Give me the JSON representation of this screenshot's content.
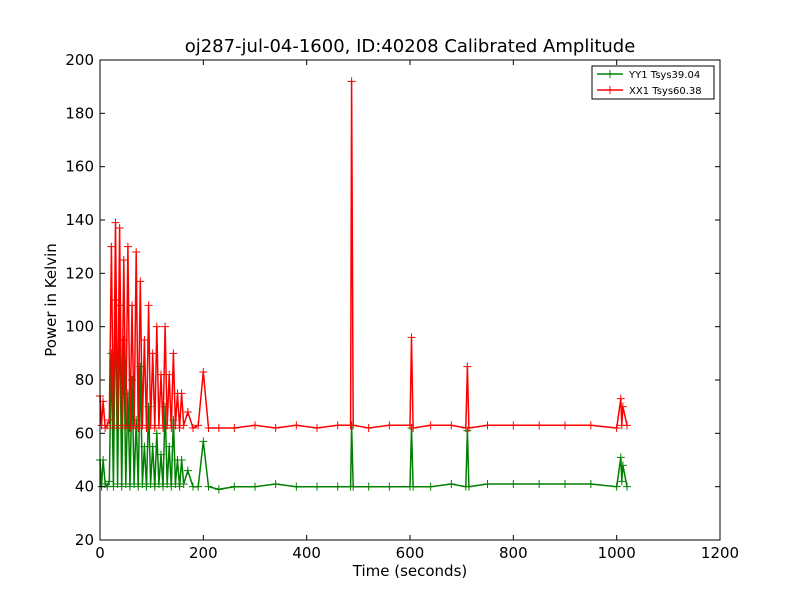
{
  "chart_data": {
    "type": "line",
    "title": "oj287-jul-04-1600, ID:40208 Calibrated Amplitude",
    "xlabel": "Time (seconds)",
    "ylabel": "Power in Kelvin",
    "xlim": [
      0,
      1200
    ],
    "ylim": [
      20,
      200
    ],
    "xticks": [
      0,
      200,
      400,
      600,
      800,
      1000,
      1200
    ],
    "yticks": [
      20,
      40,
      60,
      80,
      100,
      120,
      140,
      160,
      180,
      200
    ],
    "grid": false,
    "legend_position": "top-right",
    "series": [
      {
        "name": "YY1 Tsys39.04",
        "color": "#008000",
        "marker": "+",
        "x": [
          0,
          3,
          6,
          10,
          14,
          18,
          22,
          26,
          30,
          34,
          38,
          42,
          46,
          50,
          54,
          58,
          62,
          66,
          70,
          74,
          78,
          82,
          86,
          90,
          94,
          98,
          102,
          106,
          110,
          114,
          118,
          122,
          126,
          130,
          134,
          138,
          142,
          146,
          150,
          154,
          158,
          162,
          170,
          180,
          190,
          200,
          210,
          230,
          260,
          300,
          340,
          380,
          420,
          460,
          485,
          487,
          490,
          520,
          560,
          600,
          603,
          606,
          640,
          680,
          708,
          711,
          714,
          750,
          800,
          850,
          900,
          950,
          1000,
          1008,
          1010,
          1012,
          1020
        ],
        "values": [
          50,
          40,
          50,
          41,
          40,
          42,
          90,
          40,
          110,
          41,
          108,
          40,
          95,
          41,
          75,
          40,
          80,
          41,
          65,
          40,
          85,
          41,
          55,
          40,
          70,
          41,
          55,
          40,
          60,
          41,
          52,
          40,
          70,
          41,
          55,
          40,
          65,
          41,
          50,
          40,
          50,
          41,
          46,
          40,
          40,
          57,
          40,
          39,
          40,
          40,
          41,
          40,
          40,
          40,
          40,
          63,
          40,
          40,
          40,
          40,
          62,
          40,
          40,
          41,
          40,
          61,
          40,
          41,
          41,
          41,
          41,
          41,
          40,
          51,
          42,
          48,
          40
        ]
      },
      {
        "name": "XX1 Tsys60.38",
        "color": "#ff0000",
        "marker": "+",
        "x": [
          0,
          3,
          6,
          10,
          14,
          18,
          22,
          26,
          30,
          34,
          38,
          42,
          46,
          50,
          54,
          58,
          62,
          66,
          70,
          74,
          78,
          82,
          86,
          90,
          94,
          98,
          102,
          106,
          110,
          114,
          118,
          122,
          126,
          130,
          134,
          138,
          142,
          146,
          150,
          154,
          158,
          162,
          170,
          180,
          190,
          200,
          210,
          230,
          260,
          300,
          340,
          380,
          420,
          460,
          485,
          487,
          490,
          520,
          560,
          600,
          603,
          606,
          640,
          680,
          708,
          711,
          714,
          750,
          800,
          850,
          900,
          950,
          1000,
          1008,
          1010,
          1012,
          1020
        ],
        "values": [
          74,
          63,
          72,
          62,
          63,
          65,
          130,
          62,
          139,
          63,
          137,
          62,
          125,
          63,
          130,
          62,
          108,
          63,
          128,
          62,
          117,
          63,
          95,
          62,
          108,
          63,
          90,
          62,
          100,
          63,
          82,
          62,
          100,
          63,
          82,
          62,
          90,
          63,
          75,
          62,
          75,
          63,
          68,
          62,
          63,
          83,
          62,
          62,
          62,
          63,
          62,
          63,
          62,
          63,
          63,
          192,
          63,
          62,
          63,
          63,
          96,
          62,
          63,
          63,
          62,
          85,
          62,
          63,
          63,
          63,
          63,
          63,
          62,
          73,
          63,
          70,
          63
        ]
      }
    ]
  }
}
